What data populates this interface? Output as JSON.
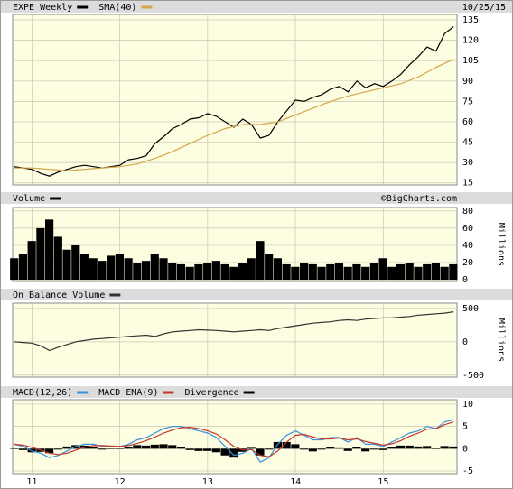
{
  "chart_data": [
    {
      "type": "line",
      "date": "10/25/15",
      "x": [
        10.8,
        10.9,
        11.0,
        11.1,
        11.2,
        11.3,
        11.4,
        11.5,
        11.6,
        11.7,
        11.8,
        11.9,
        12.0,
        12.1,
        12.2,
        12.3,
        12.4,
        12.5,
        12.6,
        12.7,
        12.8,
        12.9,
        13.0,
        13.1,
        13.2,
        13.3,
        13.4,
        13.5,
        13.6,
        13.7,
        13.8,
        13.9,
        14.0,
        14.1,
        14.2,
        14.3,
        14.4,
        14.5,
        14.6,
        14.7,
        14.8,
        14.9,
        15.0,
        15.1,
        15.2,
        15.3,
        15.4,
        15.5,
        15.6,
        15.7,
        15.8
      ],
      "xlim": [
        10.78,
        15.84
      ],
      "xticks": [
        11,
        12,
        13,
        14,
        15
      ],
      "ylim": [
        13.5,
        139
      ],
      "yticks": [
        15,
        30,
        45,
        60,
        75,
        90,
        105,
        120,
        135
      ],
      "grid": true,
      "series": [
        {
          "name": "EXPE Weekly",
          "color": "#000000",
          "values": [
            27,
            26,
            25,
            22,
            20,
            23,
            25,
            27,
            28,
            27,
            26,
            27,
            28,
            32,
            33,
            35,
            44,
            49,
            55,
            58,
            62,
            63,
            66,
            64,
            60,
            56,
            62,
            58,
            48,
            50,
            60,
            68,
            76,
            75,
            78,
            80,
            84,
            86,
            82,
            90,
            85,
            88,
            86,
            90,
            95,
            102,
            108,
            115,
            112,
            125,
            130
          ]
        },
        {
          "name": "SMA(40)",
          "color": "#d4a64a",
          "values": [
            26,
            26,
            26,
            25.5,
            25,
            24.5,
            24,
            24.5,
            25,
            25.5,
            26,
            26.5,
            27,
            28,
            29,
            31,
            33,
            35.5,
            38,
            41,
            44,
            47,
            50,
            52.5,
            55,
            56.5,
            58,
            58,
            58,
            59,
            60,
            62.5,
            65,
            67.5,
            70,
            72.5,
            75,
            77,
            79,
            80.5,
            82,
            83.5,
            85,
            86.5,
            88,
            90.5,
            93,
            96.5,
            100,
            103,
            106
          ]
        }
      ]
    },
    {
      "type": "bar",
      "annotation": "©BigCharts.com",
      "y_label": "Millions",
      "x": [
        10.8,
        10.9,
        11.0,
        11.1,
        11.2,
        11.3,
        11.4,
        11.5,
        11.6,
        11.7,
        11.8,
        11.9,
        12.0,
        12.1,
        12.2,
        12.3,
        12.4,
        12.5,
        12.6,
        12.7,
        12.8,
        12.9,
        13.0,
        13.1,
        13.2,
        13.3,
        13.4,
        13.5,
        13.6,
        13.7,
        13.8,
        13.9,
        14.0,
        14.1,
        14.2,
        14.3,
        14.4,
        14.5,
        14.6,
        14.7,
        14.8,
        14.9,
        15.0,
        15.1,
        15.2,
        15.3,
        15.4,
        15.5,
        15.6,
        15.7,
        15.8
      ],
      "xlim": [
        10.78,
        15.84
      ],
      "xticks": [
        11,
        12,
        13,
        14,
        15
      ],
      "ylim": [
        -2,
        84
      ],
      "yticks": [
        0,
        20,
        40,
        60,
        80
      ],
      "grid": true,
      "series": [
        {
          "name": "Volume",
          "color": "#000000",
          "values": [
            25,
            30,
            45,
            60,
            70,
            50,
            35,
            40,
            30,
            25,
            22,
            28,
            30,
            25,
            20,
            22,
            30,
            25,
            20,
            18,
            15,
            18,
            20,
            22,
            18,
            15,
            20,
            25,
            45,
            30,
            25,
            18,
            15,
            20,
            18,
            15,
            18,
            20,
            15,
            18,
            15,
            20,
            25,
            15,
            18,
            20,
            15,
            18,
            20,
            15,
            18
          ]
        }
      ]
    },
    {
      "type": "line",
      "y_label": "Millions",
      "x": [
        10.8,
        10.9,
        11.0,
        11.1,
        11.2,
        11.3,
        11.4,
        11.5,
        11.6,
        11.7,
        11.8,
        11.9,
        12.0,
        12.1,
        12.2,
        12.3,
        12.4,
        12.5,
        12.6,
        12.7,
        12.8,
        12.9,
        13.0,
        13.1,
        13.2,
        13.3,
        13.4,
        13.5,
        13.6,
        13.7,
        13.8,
        13.9,
        14.0,
        14.1,
        14.2,
        14.3,
        14.4,
        14.5,
        14.6,
        14.7,
        14.8,
        14.9,
        15.0,
        15.1,
        15.2,
        15.3,
        15.4,
        15.5,
        15.6,
        15.7,
        15.8
      ],
      "xlim": [
        10.78,
        15.84
      ],
      "xticks": [
        11,
        12,
        13,
        14,
        15
      ],
      "ylim": [
        -530,
        580
      ],
      "yticks": [
        -500,
        0,
        500
      ],
      "grid": true,
      "series": [
        {
          "name": "On Balance Volume",
          "color": "#333333",
          "values": [
            0,
            -10,
            -20,
            -60,
            -130,
            -80,
            -40,
            0,
            20,
            40,
            50,
            60,
            70,
            80,
            90,
            100,
            80,
            120,
            150,
            160,
            170,
            180,
            175,
            170,
            160,
            150,
            160,
            170,
            180,
            170,
            200,
            220,
            240,
            260,
            280,
            290,
            300,
            320,
            330,
            320,
            340,
            350,
            360,
            360,
            370,
            380,
            400,
            410,
            420,
            430,
            450
          ]
        }
      ]
    },
    {
      "type": "line",
      "x": [
        10.8,
        10.9,
        11.0,
        11.1,
        11.2,
        11.3,
        11.4,
        11.5,
        11.6,
        11.7,
        11.8,
        11.9,
        12.0,
        12.1,
        12.2,
        12.3,
        12.4,
        12.5,
        12.6,
        12.7,
        12.8,
        12.9,
        13.0,
        13.1,
        13.2,
        13.3,
        13.4,
        13.5,
        13.6,
        13.7,
        13.8,
        13.9,
        14.0,
        14.1,
        14.2,
        14.3,
        14.4,
        14.5,
        14.6,
        14.7,
        14.8,
        14.9,
        15.0,
        15.1,
        15.2,
        15.3,
        15.4,
        15.5,
        15.6,
        15.7,
        15.8
      ],
      "xlim": [
        10.78,
        15.84
      ],
      "xticks": [
        11,
        12,
        13,
        14,
        15
      ],
      "ylim": [
        -5.6,
        11
      ],
      "yticks": [
        -5,
        0,
        5,
        10
      ],
      "grid": true,
      "series": [
        {
          "name": "MACD(12,26)",
          "color": "#3b8fd9",
          "values": [
            1,
            0.5,
            -0.5,
            -1,
            -2,
            -1.5,
            -0.5,
            0.5,
            1,
            1,
            0.5,
            0.5,
            0.5,
            1,
            2,
            2.5,
            3.5,
            4.5,
            5,
            5,
            4.5,
            4,
            3.5,
            2.5,
            0.5,
            -1.5,
            -1,
            0,
            -3,
            -2,
            1,
            3,
            4,
            3,
            2,
            2,
            2.5,
            2.5,
            1.5,
            2.5,
            1,
            1,
            0.5,
            1.5,
            2.5,
            3.5,
            4,
            5,
            4.5,
            6,
            6.5
          ]
        },
        {
          "name": "MACD EMA(9)",
          "color": "#c0392b",
          "values": [
            1,
            0.8,
            0.3,
            -0.3,
            -1,
            -1.3,
            -1,
            -0.3,
            0.3,
            0.7,
            0.7,
            0.6,
            0.5,
            0.7,
            1.2,
            1.8,
            2.6,
            3.5,
            4.2,
            4.7,
            4.8,
            4.5,
            4,
            3.3,
            2,
            0.5,
            -0.3,
            -0.2,
            -1.5,
            -1.8,
            -0.5,
            1.5,
            3,
            3.2,
            2.6,
            2.2,
            2.2,
            2.4,
            2,
            2.2,
            1.6,
            1.2,
            0.8,
            1.1,
            1.8,
            2.8,
            3.5,
            4.4,
            4.5,
            5.4,
            6
          ]
        },
        {
          "name": "Divergence",
          "color": "#000000",
          "type": "bar",
          "values": [
            0,
            -0.3,
            -0.8,
            -0.7,
            -1,
            -0.2,
            0.5,
            0.8,
            0.7,
            0.3,
            -0.2,
            -0.1,
            0,
            0.3,
            0.8,
            0.7,
            0.9,
            1,
            0.8,
            0.3,
            -0.3,
            -0.5,
            -0.5,
            -0.8,
            -1.5,
            -2,
            -0.7,
            0.2,
            -1.5,
            -0.2,
            1.5,
            1.5,
            1,
            -0.2,
            -0.6,
            -0.2,
            0.3,
            0.1,
            -0.5,
            0.3,
            -0.6,
            -0.2,
            -0.3,
            0.4,
            0.7,
            0.7,
            0.5,
            0.6,
            0,
            0.6,
            0.5
          ]
        }
      ]
    }
  ]
}
